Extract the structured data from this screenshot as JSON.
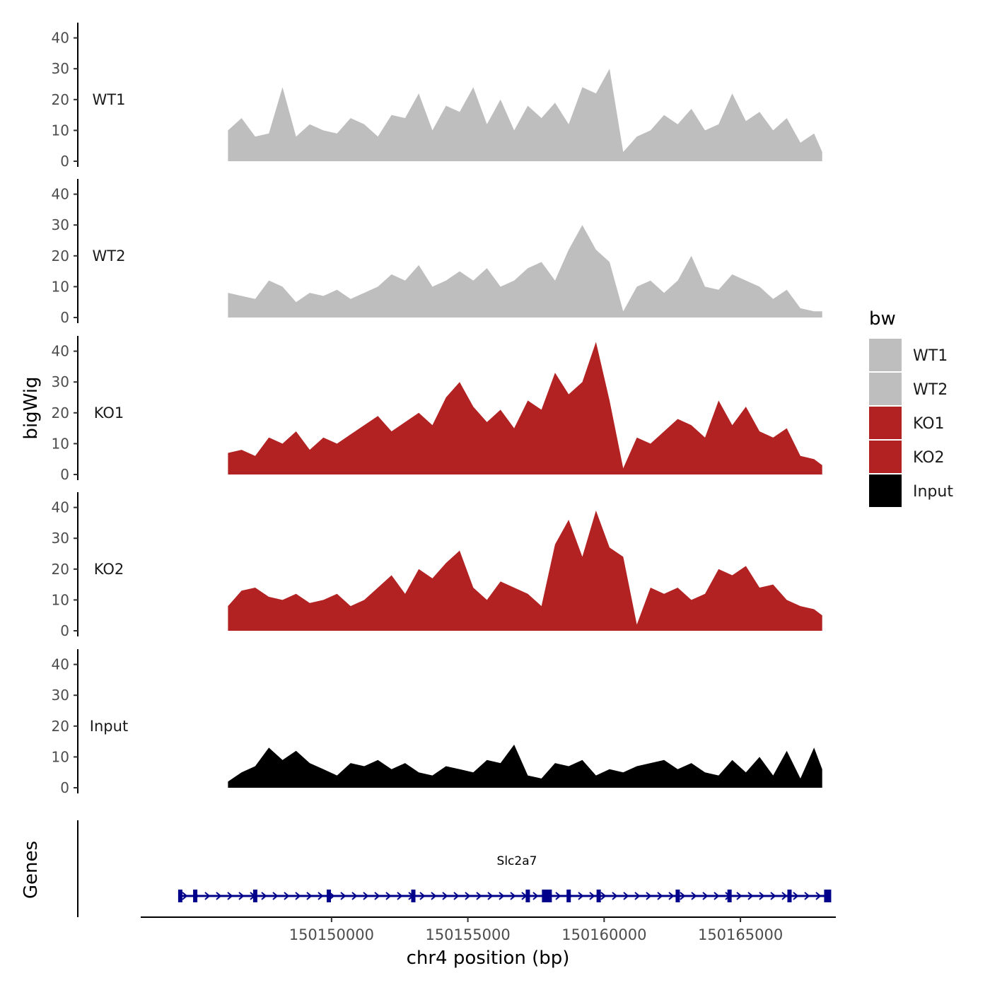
{
  "chart_data": {
    "type": "area",
    "title": "",
    "ylabel": "bigWig",
    "xlabel": "chr4 position (bp)",
    "genes_label": "Genes",
    "x_ticks": [
      150150000,
      150155000,
      150160000,
      150165000
    ],
    "x_tick_labels": [
      "150150000",
      "150155000",
      "150160000",
      "150165000"
    ],
    "xlim": [
      150143000,
      150168500
    ],
    "ylim": [
      0,
      45
    ],
    "y_ticks": [
      0,
      10,
      20,
      30,
      40
    ],
    "y_tick_labels": [
      "0",
      "10",
      "20",
      "30",
      "40"
    ],
    "legend": {
      "title": "bw",
      "position": "right",
      "items": [
        {
          "label": "WT1",
          "color": "#bebebe"
        },
        {
          "label": "WT2",
          "color": "#bebebe"
        },
        {
          "label": "KO1",
          "color": "#b22222"
        },
        {
          "label": "KO2",
          "color": "#b22222"
        },
        {
          "label": "Input",
          "color": "#000000"
        }
      ]
    },
    "series": [
      {
        "name": "WT1",
        "color": "#bebebe",
        "x": [
          150146200,
          150146700,
          150147200,
          150147700,
          150148200,
          150148700,
          150149200,
          150149700,
          150150200,
          150150700,
          150151200,
          150151700,
          150152200,
          150152700,
          150153200,
          150153700,
          150154200,
          150154700,
          150155200,
          150155700,
          150156200,
          150156700,
          150157200,
          150157700,
          150158200,
          150158700,
          150159200,
          150159700,
          150160200,
          150160700,
          150161200,
          150161700,
          150162200,
          150162700,
          150163200,
          150163700,
          150164200,
          150164700,
          150165200,
          150165700,
          150166200,
          150166700,
          150167200,
          150167700,
          150168000
        ],
        "values": [
          10,
          14,
          8,
          9,
          24,
          8,
          12,
          10,
          9,
          14,
          12,
          8,
          15,
          14,
          22,
          10,
          18,
          16,
          24,
          12,
          20,
          10,
          18,
          14,
          19,
          12,
          24,
          22,
          30,
          3,
          8,
          10,
          15,
          12,
          17,
          10,
          12,
          22,
          13,
          16,
          10,
          14,
          6,
          9,
          3
        ]
      },
      {
        "name": "WT2",
        "color": "#bebebe",
        "x": [
          150146200,
          150146700,
          150147200,
          150147700,
          150148200,
          150148700,
          150149200,
          150149700,
          150150200,
          150150700,
          150151200,
          150151700,
          150152200,
          150152700,
          150153200,
          150153700,
          150154200,
          150154700,
          150155200,
          150155700,
          150156200,
          150156700,
          150157200,
          150157700,
          150158200,
          150158700,
          150159200,
          150159700,
          150160200,
          150160700,
          150161200,
          150161700,
          150162200,
          150162700,
          150163200,
          150163700,
          150164200,
          150164700,
          150165200,
          150165700,
          150166200,
          150166700,
          150167200,
          150167700,
          150168000
        ],
        "values": [
          8,
          7,
          6,
          12,
          10,
          5,
          8,
          7,
          9,
          6,
          8,
          10,
          14,
          12,
          17,
          10,
          12,
          15,
          12,
          16,
          10,
          12,
          16,
          18,
          12,
          22,
          30,
          22,
          18,
          2,
          10,
          12,
          8,
          12,
          20,
          10,
          9,
          14,
          12,
          10,
          6,
          9,
          3,
          2,
          2
        ]
      },
      {
        "name": "KO1",
        "color": "#b22222",
        "x": [
          150146200,
          150146700,
          150147200,
          150147700,
          150148200,
          150148700,
          150149200,
          150149700,
          150150200,
          150150700,
          150151200,
          150151700,
          150152200,
          150152700,
          150153200,
          150153700,
          150154200,
          150154700,
          150155200,
          150155700,
          150156200,
          150156700,
          150157200,
          150157700,
          150158200,
          150158700,
          150159200,
          150159700,
          150160200,
          150160700,
          150161200,
          150161700,
          150162200,
          150162700,
          150163200,
          150163700,
          150164200,
          150164700,
          150165200,
          150165700,
          150166200,
          150166700,
          150167200,
          150167700,
          150168000
        ],
        "values": [
          7,
          8,
          6,
          12,
          10,
          14,
          8,
          12,
          10,
          13,
          16,
          19,
          14,
          17,
          20,
          16,
          25,
          30,
          22,
          17,
          21,
          15,
          24,
          21,
          33,
          26,
          30,
          43,
          24,
          2,
          12,
          10,
          14,
          18,
          16,
          12,
          24,
          16,
          22,
          14,
          12,
          15,
          6,
          5,
          3
        ]
      },
      {
        "name": "KO2",
        "color": "#b22222",
        "x": [
          150146200,
          150146700,
          150147200,
          150147700,
          150148200,
          150148700,
          150149200,
          150149700,
          150150200,
          150150700,
          150151200,
          150151700,
          150152200,
          150152700,
          150153200,
          150153700,
          150154200,
          150154700,
          150155200,
          150155700,
          150156200,
          150156700,
          150157200,
          150157700,
          150158200,
          150158700,
          150159200,
          150159700,
          150160200,
          150160700,
          150161200,
          150161700,
          150162200,
          150162700,
          150163200,
          150163700,
          150164200,
          150164700,
          150165200,
          150165700,
          150166200,
          150166700,
          150167200,
          150167700,
          150168000
        ],
        "values": [
          8,
          13,
          14,
          11,
          10,
          12,
          9,
          10,
          12,
          8,
          10,
          14,
          18,
          12,
          20,
          17,
          22,
          26,
          14,
          10,
          16,
          14,
          12,
          8,
          28,
          36,
          24,
          39,
          27,
          24,
          2,
          14,
          12,
          14,
          10,
          12,
          20,
          18,
          21,
          14,
          15,
          10,
          8,
          7,
          5
        ]
      },
      {
        "name": "Input",
        "color": "#000000",
        "x": [
          150146200,
          150146700,
          150147200,
          150147700,
          150148200,
          150148700,
          150149200,
          150149700,
          150150200,
          150150700,
          150151200,
          150151700,
          150152200,
          150152700,
          150153200,
          150153700,
          150154200,
          150154700,
          150155200,
          150155700,
          150156200,
          150156700,
          150157200,
          150157700,
          150158200,
          150158700,
          150159200,
          150159700,
          150160200,
          150160700,
          150161200,
          150161700,
          150162200,
          150162700,
          150163200,
          150163700,
          150164200,
          150164700,
          150165200,
          150165700,
          150166200,
          150166700,
          150167200,
          150167700,
          150168000
        ],
        "values": [
          2,
          5,
          7,
          13,
          9,
          12,
          8,
          6,
          4,
          8,
          7,
          9,
          6,
          8,
          5,
          4,
          7,
          6,
          5,
          9,
          8,
          14,
          4,
          3,
          8,
          7,
          9,
          4,
          6,
          5,
          7,
          8,
          9,
          6,
          8,
          5,
          4,
          9,
          5,
          10,
          4,
          12,
          3,
          13,
          6
        ]
      }
    ],
    "genes": [
      {
        "name": "Slc2a7",
        "start": 150144400,
        "end": 150168300,
        "strand": "+",
        "exons": [
          150144450,
          150145000,
          150147200,
          150149900,
          150153000,
          150157200,
          150157900,
          150158700,
          150159800,
          150162700,
          150164600,
          150166800,
          150168200
        ]
      }
    ]
  }
}
